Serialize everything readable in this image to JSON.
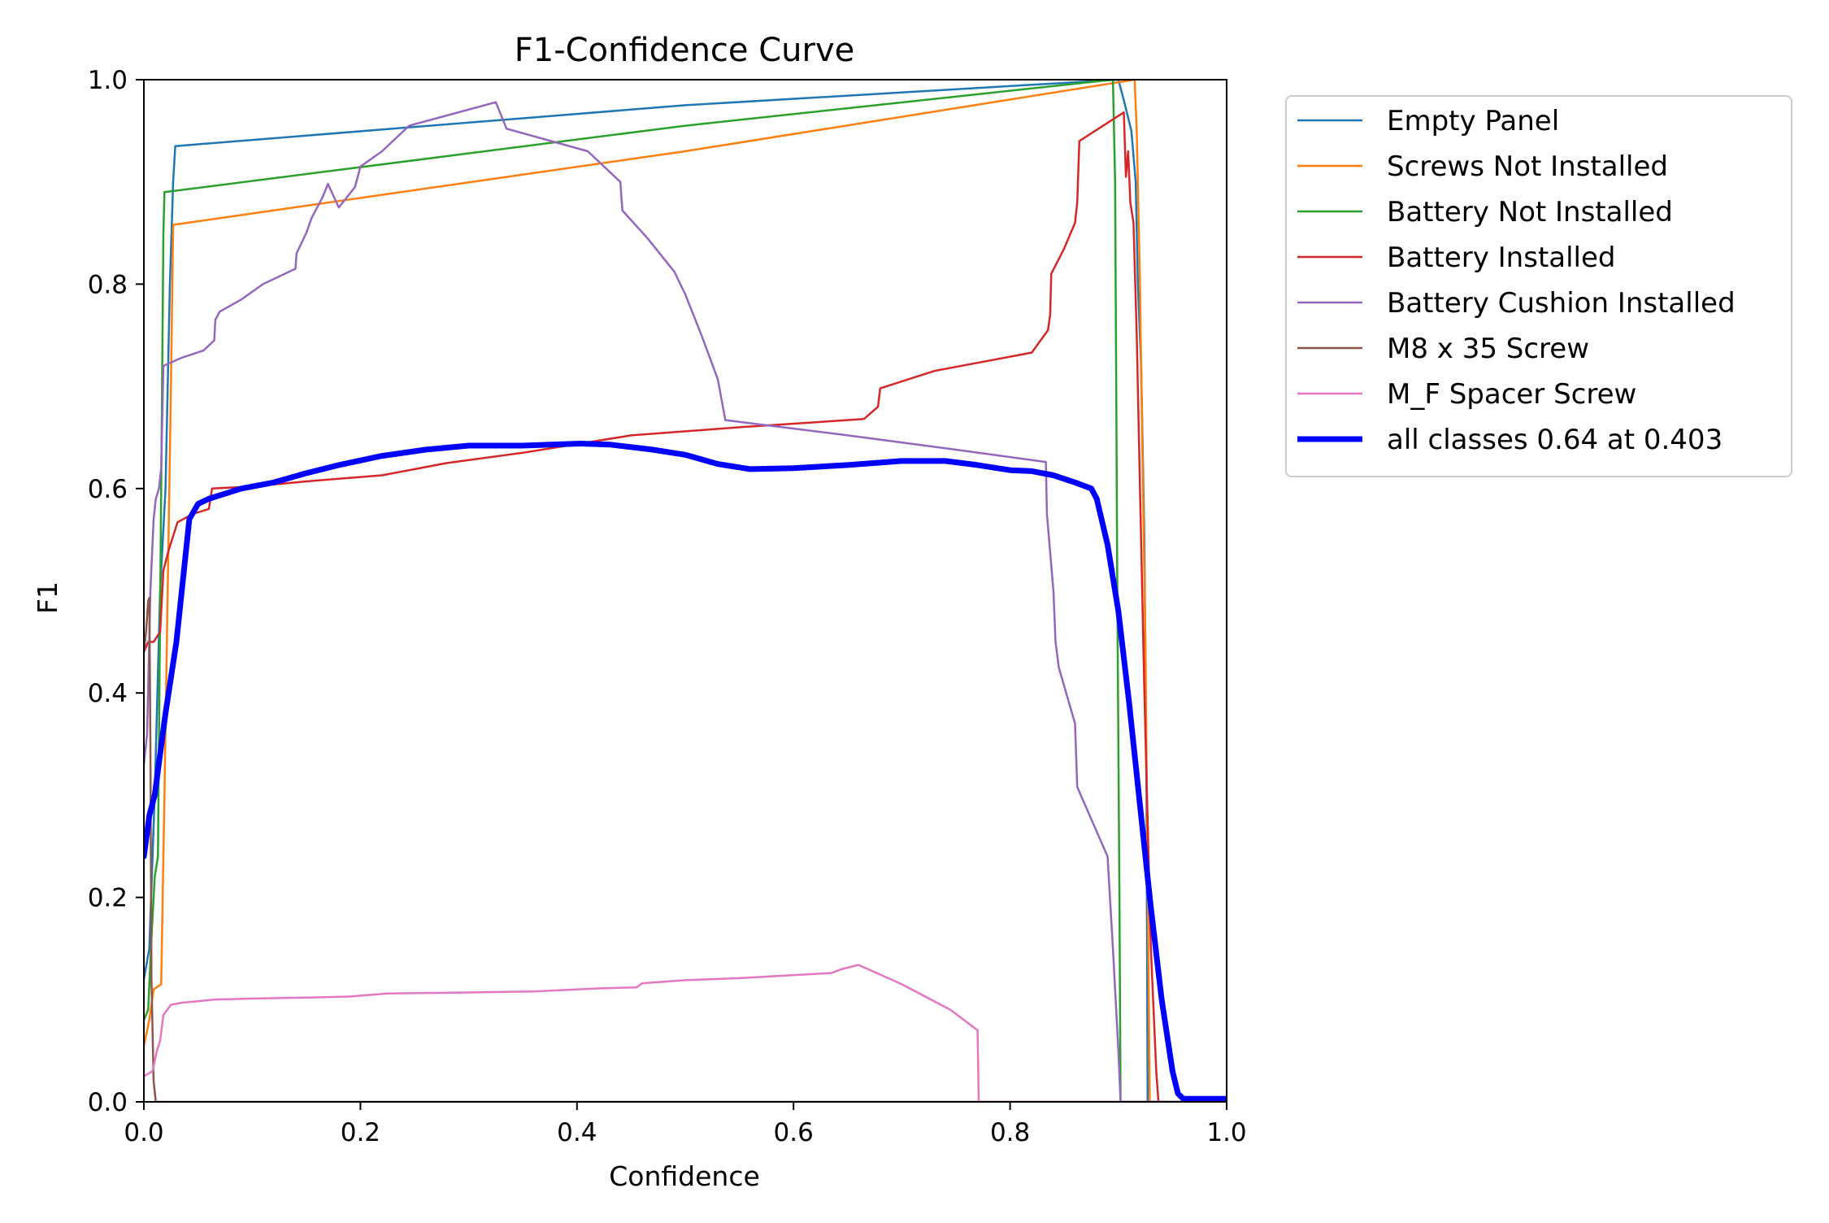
{
  "chart_data": {
    "type": "line",
    "title": "F1-Confidence Curve",
    "xlabel": "Confidence",
    "ylabel": "F1",
    "xlim": [
      0.0,
      1.0
    ],
    "ylim": [
      0.0,
      1.0
    ],
    "xticks": [
      "0.0",
      "0.2",
      "0.4",
      "0.6",
      "0.8",
      "1.0"
    ],
    "yticks": [
      "0.0",
      "0.2",
      "0.4",
      "0.6",
      "0.8",
      "1.0"
    ],
    "grid": false,
    "legend_position": "outside-right",
    "series": [
      {
        "name": "Empty Panel",
        "color": "#1f77b4",
        "width": 2.5,
        "points": [
          [
            0,
            0.12
          ],
          [
            0.005,
            0.15
          ],
          [
            0.01,
            0.3
          ],
          [
            0.015,
            0.5
          ],
          [
            0.02,
            0.6
          ],
          [
            0.024,
            0.8
          ],
          [
            0.027,
            0.9
          ],
          [
            0.029,
            0.935
          ],
          [
            0.5,
            0.975
          ],
          [
            0.9,
            1.0
          ],
          [
            0.905,
            0.98
          ],
          [
            0.912,
            0.95
          ],
          [
            0.916,
            0.9
          ],
          [
            0.918,
            0.8
          ],
          [
            0.921,
            0.72
          ],
          [
            0.924,
            0.55
          ],
          [
            0.926,
            0.3
          ],
          [
            0.927,
            0.0
          ],
          [
            1.0,
            0.0
          ]
        ]
      },
      {
        "name": "Screws Not Installed",
        "color": "#ff7f0e",
        "width": 2.5,
        "points": [
          [
            0,
            0.055
          ],
          [
            0.005,
            0.08
          ],
          [
            0.009,
            0.11
          ],
          [
            0.016,
            0.115
          ],
          [
            0.019,
            0.3
          ],
          [
            0.022,
            0.5
          ],
          [
            0.025,
            0.7
          ],
          [
            0.027,
            0.858
          ],
          [
            0.5,
            0.93
          ],
          [
            0.915,
            1.0
          ],
          [
            0.917,
            0.95
          ],
          [
            0.92,
            0.8
          ],
          [
            0.922,
            0.65
          ],
          [
            0.925,
            0.45
          ],
          [
            0.927,
            0.22
          ],
          [
            0.929,
            0.0
          ],
          [
            1.0,
            0.0
          ]
        ]
      },
      {
        "name": "Battery Not Installed",
        "color": "#2ca02c",
        "width": 2.5,
        "points": [
          [
            0,
            0.08
          ],
          [
            0.004,
            0.09
          ],
          [
            0.007,
            0.16
          ],
          [
            0.01,
            0.22
          ],
          [
            0.013,
            0.24
          ],
          [
            0.016,
            0.6
          ],
          [
            0.018,
            0.85
          ],
          [
            0.019,
            0.89
          ],
          [
            0.5,
            0.955
          ],
          [
            0.895,
            1.0
          ],
          [
            0.897,
            0.9
          ],
          [
            0.899,
            0.5
          ],
          [
            0.901,
            0.2
          ],
          [
            0.902,
            0.0
          ],
          [
            1.0,
            0.0
          ]
        ]
      },
      {
        "name": "Battery Installed",
        "color": "#d62728",
        "width": 2.5,
        "points": [
          [
            0,
            0.44
          ],
          [
            0.004,
            0.45
          ],
          [
            0.009,
            0.45
          ],
          [
            0.015,
            0.46
          ],
          [
            0.018,
            0.52
          ],
          [
            0.023,
            0.54
          ],
          [
            0.029,
            0.56
          ],
          [
            0.031,
            0.567
          ],
          [
            0.045,
            0.575
          ],
          [
            0.06,
            0.58
          ],
          [
            0.063,
            0.6
          ],
          [
            0.1,
            0.602
          ],
          [
            0.15,
            0.607
          ],
          [
            0.22,
            0.613
          ],
          [
            0.28,
            0.625
          ],
          [
            0.35,
            0.635
          ],
          [
            0.45,
            0.652
          ],
          [
            0.55,
            0.66
          ],
          [
            0.665,
            0.668
          ],
          [
            0.678,
            0.68
          ],
          [
            0.68,
            0.698
          ],
          [
            0.73,
            0.715
          ],
          [
            0.82,
            0.733
          ],
          [
            0.835,
            0.755
          ],
          [
            0.837,
            0.77
          ],
          [
            0.838,
            0.81
          ],
          [
            0.85,
            0.835
          ],
          [
            0.86,
            0.86
          ],
          [
            0.862,
            0.88
          ],
          [
            0.864,
            0.94
          ],
          [
            0.905,
            0.968
          ],
          [
            0.907,
            0.905
          ],
          [
            0.909,
            0.93
          ],
          [
            0.911,
            0.88
          ],
          [
            0.914,
            0.86
          ],
          [
            0.917,
            0.75
          ],
          [
            0.92,
            0.6
          ],
          [
            0.924,
            0.4
          ],
          [
            0.93,
            0.15
          ],
          [
            0.935,
            0.03
          ],
          [
            0.937,
            0.0
          ],
          [
            1.0,
            0.0
          ]
        ]
      },
      {
        "name": "Battery Cushion Installed",
        "color": "#9467bd",
        "width": 2.5,
        "points": [
          [
            0,
            0.33
          ],
          [
            0.003,
            0.36
          ],
          [
            0.006,
            0.5
          ],
          [
            0.009,
            0.57
          ],
          [
            0.011,
            0.59
          ],
          [
            0.014,
            0.6
          ],
          [
            0.016,
            0.62
          ],
          [
            0.018,
            0.72
          ],
          [
            0.035,
            0.728
          ],
          [
            0.055,
            0.735
          ],
          [
            0.065,
            0.745
          ],
          [
            0.066,
            0.765
          ],
          [
            0.07,
            0.773
          ],
          [
            0.09,
            0.785
          ],
          [
            0.11,
            0.8
          ],
          [
            0.14,
            0.815
          ],
          [
            0.141,
            0.83
          ],
          [
            0.15,
            0.85
          ],
          [
            0.155,
            0.865
          ],
          [
            0.165,
            0.885
          ],
          [
            0.17,
            0.898
          ],
          [
            0.18,
            0.875
          ],
          [
            0.195,
            0.895
          ],
          [
            0.2,
            0.915
          ],
          [
            0.22,
            0.93
          ],
          [
            0.245,
            0.955
          ],
          [
            0.325,
            0.978
          ],
          [
            0.335,
            0.952
          ],
          [
            0.41,
            0.93
          ],
          [
            0.44,
            0.9
          ],
          [
            0.442,
            0.872
          ],
          [
            0.465,
            0.845
          ],
          [
            0.49,
            0.812
          ],
          [
            0.5,
            0.79
          ],
          [
            0.515,
            0.75
          ],
          [
            0.53,
            0.707
          ],
          [
            0.537,
            0.667
          ],
          [
            0.65,
            0.652
          ],
          [
            0.75,
            0.638
          ],
          [
            0.833,
            0.626
          ],
          [
            0.834,
            0.575
          ],
          [
            0.84,
            0.5
          ],
          [
            0.842,
            0.45
          ],
          [
            0.845,
            0.425
          ],
          [
            0.86,
            0.37
          ],
          [
            0.862,
            0.308
          ],
          [
            0.89,
            0.24
          ],
          [
            0.895,
            0.15
          ],
          [
            0.9,
            0.05
          ],
          [
            0.902,
            0.0
          ],
          [
            1.0,
            0.0
          ]
        ]
      },
      {
        "name": "M8 x 35 Screw",
        "color": "#8c564b",
        "width": 2.5,
        "points": [
          [
            0,
            0.44
          ],
          [
            0.002,
            0.46
          ],
          [
            0.004,
            0.49
          ],
          [
            0.005,
            0.493
          ],
          [
            0.006,
            0.35
          ],
          [
            0.007,
            0.12
          ],
          [
            0.009,
            0.02
          ],
          [
            0.011,
            0.0
          ],
          [
            1.0,
            0.0
          ]
        ]
      },
      {
        "name": "M_F Spacer Screw",
        "color": "#e377c2",
        "width": 2.5,
        "points": [
          [
            0,
            0.025
          ],
          [
            0.008,
            0.03
          ],
          [
            0.012,
            0.05
          ],
          [
            0.015,
            0.06
          ],
          [
            0.018,
            0.085
          ],
          [
            0.025,
            0.095
          ],
          [
            0.035,
            0.097
          ],
          [
            0.065,
            0.1
          ],
          [
            0.1,
            0.101
          ],
          [
            0.15,
            0.102
          ],
          [
            0.19,
            0.103
          ],
          [
            0.225,
            0.106
          ],
          [
            0.3,
            0.107
          ],
          [
            0.36,
            0.108
          ],
          [
            0.42,
            0.111
          ],
          [
            0.455,
            0.112
          ],
          [
            0.46,
            0.116
          ],
          [
            0.5,
            0.119
          ],
          [
            0.55,
            0.121
          ],
          [
            0.635,
            0.126
          ],
          [
            0.645,
            0.13
          ],
          [
            0.66,
            0.134
          ],
          [
            0.7,
            0.115
          ],
          [
            0.745,
            0.09
          ],
          [
            0.77,
            0.07
          ],
          [
            0.771,
            0.0
          ],
          [
            1.0,
            0.0
          ]
        ]
      },
      {
        "name": "all classes 0.64 at 0.403",
        "color": "#0000ff",
        "width": 7,
        "points": [
          [
            0,
            0.24
          ],
          [
            0.005,
            0.28
          ],
          [
            0.01,
            0.3
          ],
          [
            0.02,
            0.38
          ],
          [
            0.03,
            0.45
          ],
          [
            0.037,
            0.52
          ],
          [
            0.042,
            0.57
          ],
          [
            0.05,
            0.585
          ],
          [
            0.06,
            0.59
          ],
          [
            0.09,
            0.6
          ],
          [
            0.12,
            0.606
          ],
          [
            0.15,
            0.615
          ],
          [
            0.18,
            0.623
          ],
          [
            0.22,
            0.632
          ],
          [
            0.26,
            0.638
          ],
          [
            0.3,
            0.642
          ],
          [
            0.35,
            0.642
          ],
          [
            0.403,
            0.644
          ],
          [
            0.43,
            0.643
          ],
          [
            0.47,
            0.638
          ],
          [
            0.5,
            0.633
          ],
          [
            0.53,
            0.624
          ],
          [
            0.56,
            0.619
          ],
          [
            0.6,
            0.62
          ],
          [
            0.65,
            0.623
          ],
          [
            0.7,
            0.627
          ],
          [
            0.74,
            0.627
          ],
          [
            0.77,
            0.623
          ],
          [
            0.8,
            0.618
          ],
          [
            0.82,
            0.617
          ],
          [
            0.84,
            0.613
          ],
          [
            0.86,
            0.606
          ],
          [
            0.875,
            0.6
          ],
          [
            0.88,
            0.59
          ],
          [
            0.89,
            0.545
          ],
          [
            0.9,
            0.48
          ],
          [
            0.91,
            0.39
          ],
          [
            0.92,
            0.29
          ],
          [
            0.93,
            0.19
          ],
          [
            0.94,
            0.1
          ],
          [
            0.95,
            0.03
          ],
          [
            0.955,
            0.008
          ],
          [
            0.96,
            0.003
          ],
          [
            1.0,
            0.003
          ]
        ]
      }
    ]
  }
}
